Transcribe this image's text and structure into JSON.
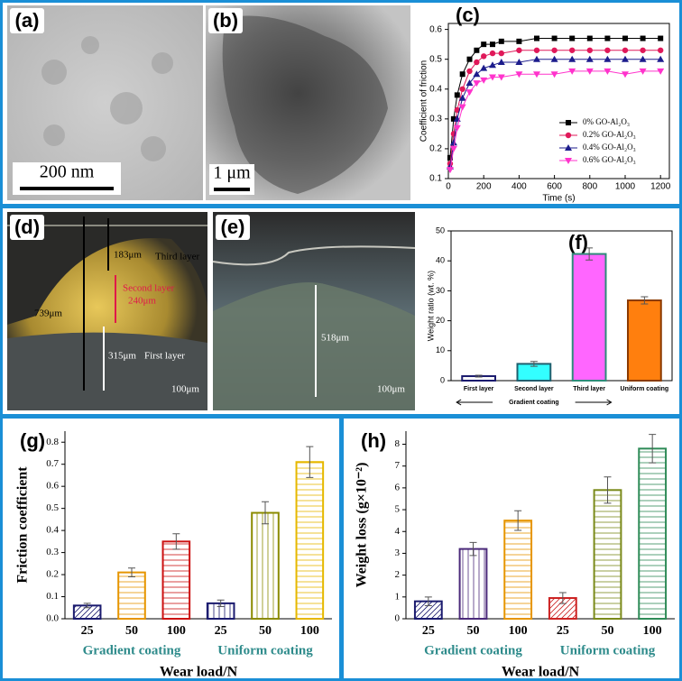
{
  "panels": {
    "a": {
      "label": "(a)",
      "scale": "200 nm"
    },
    "b": {
      "label": "(b)",
      "scale": "1 μm"
    },
    "d": {
      "label": "(d)",
      "annotations": [
        "183μm",
        "Third layer",
        "Second layer",
        "240μm",
        "739μm",
        "315μm",
        "First layer"
      ],
      "scale": "100μm"
    },
    "e": {
      "label": "(e)",
      "annotations": [
        "518μm"
      ],
      "scale": "100μm"
    }
  },
  "chart_data": [
    {
      "type": "line",
      "panel_label": "(c)",
      "xlabel": "Time (s)",
      "ylabel": "Coefficient of friction",
      "xlim": [
        0,
        1250
      ],
      "xticks": [
        0,
        200,
        400,
        600,
        800,
        1000,
        1200
      ],
      "ylim": [
        0.1,
        0.62
      ],
      "yticks": [
        0.1,
        0.2,
        0.3,
        0.4,
        0.5,
        0.6
      ],
      "x": [
        10,
        30,
        50,
        80,
        120,
        160,
        200,
        250,
        300,
        400,
        500,
        600,
        700,
        800,
        900,
        1000,
        1100,
        1200
      ],
      "series": [
        {
          "name": "0%   GO-Al₂O₃",
          "color": "#000000",
          "marker": "square",
          "values": [
            0.17,
            0.3,
            0.38,
            0.45,
            0.5,
            0.53,
            0.55,
            0.55,
            0.56,
            0.56,
            0.57,
            0.57,
            0.57,
            0.57,
            0.57,
            0.57,
            0.57,
            0.57
          ]
        },
        {
          "name": "0.2%  GO-Al₂O₃",
          "color": "#e0195a",
          "marker": "circle",
          "values": [
            0.15,
            0.25,
            0.33,
            0.4,
            0.46,
            0.49,
            0.51,
            0.52,
            0.52,
            0.53,
            0.53,
            0.53,
            0.53,
            0.53,
            0.53,
            0.53,
            0.53,
            0.53
          ]
        },
        {
          "name": "0.4%  GO-Al₂O₃",
          "color": "#1c1c8c",
          "marker": "triangle-up",
          "values": [
            0.14,
            0.22,
            0.3,
            0.37,
            0.42,
            0.45,
            0.47,
            0.48,
            0.49,
            0.49,
            0.5,
            0.5,
            0.5,
            0.5,
            0.5,
            0.5,
            0.5,
            0.5
          ]
        },
        {
          "name": "0.6%  GO-Al₂O₃",
          "color": "#ff33cc",
          "marker": "triangle-down",
          "values": [
            0.13,
            0.2,
            0.27,
            0.34,
            0.39,
            0.42,
            0.43,
            0.44,
            0.44,
            0.45,
            0.45,
            0.45,
            0.46,
            0.46,
            0.46,
            0.45,
            0.46,
            0.46
          ]
        }
      ]
    },
    {
      "type": "bar",
      "panel_label": "(f)",
      "ylabel": "Weight ratio (wt. %)",
      "annotation": "Gradient coating",
      "categories": [
        "First layer",
        "Second layer",
        "Third layer",
        "Uniform coating"
      ],
      "values": [
        1.5,
        5.6,
        42.3,
        26.8
      ],
      "errors": [
        0.3,
        0.8,
        2,
        1.2
      ],
      "colors": [
        "#1a1a6e",
        "#1f5f6e",
        "#2e8b7a",
        "#8b3a00"
      ],
      "fills": [
        "#ffffff",
        "#33ffff",
        "#ff66ff",
        "#ff7f0e"
      ],
      "ylim": [
        0,
        50
      ],
      "yticks": [
        0,
        10,
        20,
        30,
        40,
        50
      ]
    },
    {
      "type": "bar",
      "panel_label": "(g)",
      "ylabel": "Friction coefficient",
      "xlabel": "Wear load/N",
      "categories": [
        "25",
        "50",
        "100",
        "25",
        "50",
        "100"
      ],
      "groups": [
        "Gradient coating",
        "Uniform coating"
      ],
      "values": [
        0.06,
        0.21,
        0.35,
        0.07,
        0.48,
        0.71
      ],
      "errors": [
        0.01,
        0.02,
        0.035,
        0.015,
        0.05,
        0.07
      ],
      "colors": [
        "#1a1a6e",
        "#e69500",
        "#cc1111",
        "#1a1a6e",
        "#8b8b00",
        "#e6b800"
      ],
      "hatches": [
        "diagonal",
        "horizontal",
        "horizontal",
        "vertical",
        "vertical",
        "horizontal"
      ],
      "ylim": [
        0,
        0.85
      ],
      "yticks": [
        {
          "value": 0,
          "label": "0.0"
        },
        0.1,
        0.2,
        0.3,
        0.4,
        0.5,
        0.6,
        0.7,
        0.8
      ]
    },
    {
      "type": "bar",
      "panel_label": "(h)",
      "ylabel": "Weight loss (g×10⁻²)",
      "xlabel": "Wear load/N",
      "categories": [
        "25",
        "50",
        "100",
        "25",
        "50",
        "100"
      ],
      "groups": [
        "Gradient coating",
        "Uniform coating"
      ],
      "values": [
        0.8,
        3.2,
        4.5,
        0.95,
        5.9,
        7.8
      ],
      "errors": [
        0.2,
        0.3,
        0.45,
        0.25,
        0.6,
        0.65
      ],
      "colors": [
        "#1a1a6e",
        "#4b2a7a",
        "#e69500",
        "#cc2222",
        "#7a8a1a",
        "#2e8b57"
      ],
      "hatches": [
        "diagonal",
        "vertical",
        "horizontal",
        "diagonal",
        "horizontal",
        "horizontal"
      ],
      "ylim": [
        0,
        8.6
      ],
      "yticks": [
        0,
        1,
        2,
        3,
        4,
        5,
        6,
        7,
        8
      ]
    }
  ]
}
